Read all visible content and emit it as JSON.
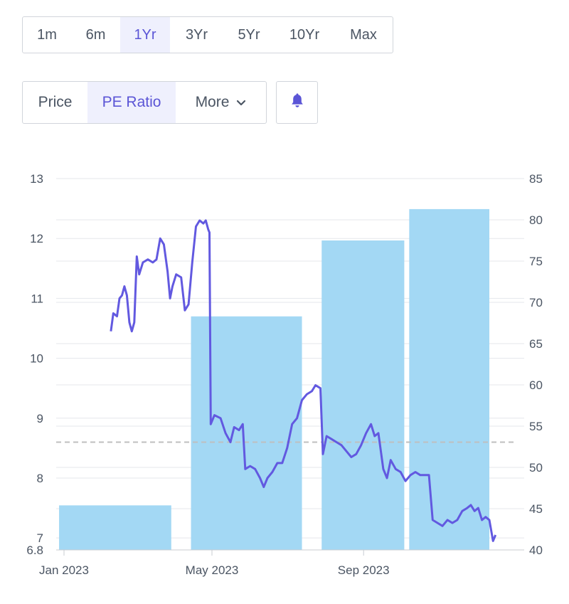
{
  "range_buttons": [
    {
      "label": "1m",
      "active": false
    },
    {
      "label": "6m",
      "active": false
    },
    {
      "label": "1Yr",
      "active": true
    },
    {
      "label": "3Yr",
      "active": false
    },
    {
      "label": "5Yr",
      "active": false
    },
    {
      "label": "10Yr",
      "active": false
    },
    {
      "label": "Max",
      "active": false
    }
  ],
  "mode_buttons": {
    "price": "Price",
    "pe_ratio": "PE Ratio",
    "more": "More",
    "active": "pe_ratio"
  },
  "alert_icon": "bell-icon",
  "colors": {
    "accent": "#5b55d6",
    "active_bg": "#eff0fd",
    "bars": "#a3d8f4",
    "line": "#6259e0",
    "average_line": "#bfbfbf",
    "grid": "#e5e7eb",
    "text": "#4b5563"
  },
  "chart_data": {
    "type": "bar+line",
    "title": "",
    "x_ticks": [
      {
        "label": "Jan 2023",
        "date": "2023-01-01"
      },
      {
        "label": "May 2023",
        "date": "2023-05-01"
      },
      {
        "label": "Sep 2023",
        "date": "2023-09-01"
      }
    ],
    "left_axis": {
      "ylim": [
        6.8,
        13
      ],
      "ticks": [
        "13",
        "12",
        "11",
        "10",
        "9",
        "8",
        "7",
        "6.8"
      ]
    },
    "right_axis": {
      "ylim": [
        40,
        85
      ],
      "ticks": [
        "85",
        "80",
        "75",
        "70",
        "65",
        "60",
        "55",
        "50",
        "45",
        "40"
      ]
    },
    "bars": [
      {
        "start": "2022-12-28",
        "end": "2023-03-29",
        "value": 45.4
      },
      {
        "start": "2023-04-14",
        "end": "2023-07-13",
        "value": 68.3
      },
      {
        "start": "2023-07-29",
        "end": "2023-10-04",
        "value": 77.5
      },
      {
        "start": "2023-08-13",
        "end": "2023-10-02",
        "value": 77.5
      },
      {
        "start": "2023-10-08",
        "end": "2023-12-12",
        "value": 81.3
      }
    ],
    "average_line_value": 8.6,
    "series": [
      {
        "axis": "left",
        "points": [
          [
            "2023-02-08",
            10.45
          ],
          [
            "2023-02-10",
            10.75
          ],
          [
            "2023-02-13",
            10.7
          ],
          [
            "2023-02-15",
            11.0
          ],
          [
            "2023-02-17",
            11.05
          ],
          [
            "2023-02-19",
            11.2
          ],
          [
            "2023-02-21",
            11.05
          ],
          [
            "2023-02-23",
            10.6
          ],
          [
            "2023-02-25",
            10.45
          ],
          [
            "2023-02-27",
            10.6
          ],
          [
            "2023-03-01",
            11.7
          ],
          [
            "2023-03-03",
            11.4
          ],
          [
            "2023-03-06",
            11.6
          ],
          [
            "2023-03-10",
            11.65
          ],
          [
            "2023-03-14",
            11.6
          ],
          [
            "2023-03-17",
            11.65
          ],
          [
            "2023-03-20",
            12.0
          ],
          [
            "2023-03-23",
            11.9
          ],
          [
            "2023-03-26",
            11.45
          ],
          [
            "2023-03-28",
            11.0
          ],
          [
            "2023-03-30",
            11.2
          ],
          [
            "2023-04-02",
            11.4
          ],
          [
            "2023-04-06",
            11.35
          ],
          [
            "2023-04-09",
            10.8
          ],
          [
            "2023-04-12",
            10.9
          ],
          [
            "2023-04-15",
            11.6
          ],
          [
            "2023-04-18",
            12.2
          ],
          [
            "2023-04-21",
            12.3
          ],
          [
            "2023-04-24",
            12.25
          ],
          [
            "2023-04-26",
            12.3
          ],
          [
            "2023-04-28",
            12.15
          ],
          [
            "2023-04-29",
            12.1
          ],
          [
            "2023-04-30",
            8.9
          ],
          [
            "2023-05-03",
            9.05
          ],
          [
            "2023-05-08",
            9.0
          ],
          [
            "2023-05-12",
            8.75
          ],
          [
            "2023-05-16",
            8.6
          ],
          [
            "2023-05-19",
            8.85
          ],
          [
            "2023-05-23",
            8.8
          ],
          [
            "2023-05-26",
            8.9
          ],
          [
            "2023-05-28",
            8.15
          ],
          [
            "2023-06-01",
            8.2
          ],
          [
            "2023-06-05",
            8.15
          ],
          [
            "2023-06-09",
            8.0
          ],
          [
            "2023-06-12",
            7.85
          ],
          [
            "2023-06-15",
            8.0
          ],
          [
            "2023-06-19",
            8.1
          ],
          [
            "2023-06-23",
            8.25
          ],
          [
            "2023-06-27",
            8.25
          ],
          [
            "2023-07-01",
            8.5
          ],
          [
            "2023-07-05",
            8.9
          ],
          [
            "2023-07-09",
            9.0
          ],
          [
            "2023-07-13",
            9.3
          ],
          [
            "2023-07-17",
            9.4
          ],
          [
            "2023-07-21",
            9.45
          ],
          [
            "2023-07-24",
            9.55
          ],
          [
            "2023-07-28",
            9.5
          ],
          [
            "2023-07-30",
            8.4
          ],
          [
            "2023-08-02",
            8.7
          ],
          [
            "2023-08-06",
            8.65
          ],
          [
            "2023-08-10",
            8.6
          ],
          [
            "2023-08-14",
            8.55
          ],
          [
            "2023-08-18",
            8.45
          ],
          [
            "2023-08-22",
            8.35
          ],
          [
            "2023-08-26",
            8.4
          ],
          [
            "2023-08-30",
            8.55
          ],
          [
            "2023-09-03",
            8.75
          ],
          [
            "2023-09-07",
            8.9
          ],
          [
            "2023-09-10",
            8.7
          ],
          [
            "2023-09-13",
            8.75
          ],
          [
            "2023-09-17",
            8.15
          ],
          [
            "2023-09-20",
            8.0
          ],
          [
            "2023-09-23",
            8.3
          ],
          [
            "2023-09-27",
            8.15
          ],
          [
            "2023-10-01",
            8.1
          ],
          [
            "2023-10-05",
            7.95
          ],
          [
            "2023-10-09",
            8.05
          ],
          [
            "2023-10-13",
            8.1
          ],
          [
            "2023-10-17",
            8.05
          ],
          [
            "2023-10-21",
            8.05
          ],
          [
            "2023-10-24",
            8.05
          ],
          [
            "2023-10-27",
            7.3
          ],
          [
            "2023-10-31",
            7.25
          ],
          [
            "2023-11-04",
            7.2
          ],
          [
            "2023-11-08",
            7.3
          ],
          [
            "2023-11-12",
            7.25
          ],
          [
            "2023-11-16",
            7.3
          ],
          [
            "2023-11-20",
            7.45
          ],
          [
            "2023-11-24",
            7.5
          ],
          [
            "2023-11-27",
            7.55
          ],
          [
            "2023-11-30",
            7.45
          ],
          [
            "2023-12-03",
            7.5
          ],
          [
            "2023-12-06",
            7.3
          ],
          [
            "2023-12-09",
            7.35
          ],
          [
            "2023-12-12",
            7.3
          ],
          [
            "2023-12-15",
            6.95
          ],
          [
            "2023-12-17",
            7.05
          ]
        ]
      }
    ]
  }
}
